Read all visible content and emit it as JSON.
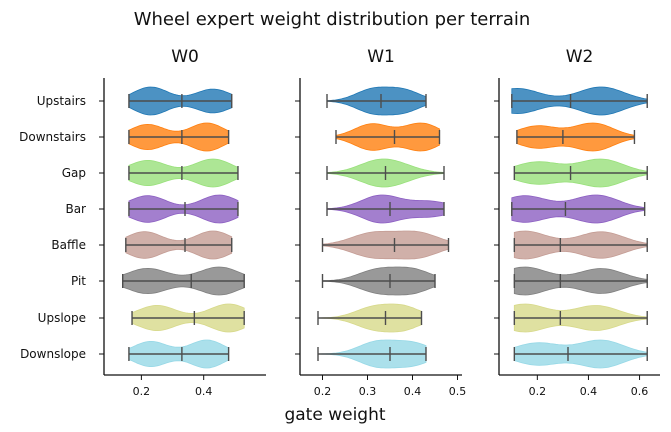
{
  "chart_data": {
    "type": "violin",
    "title": "Wheel expert weight distribution per terrain",
    "xlabel": "gate weight",
    "categories": [
      "Upstairs",
      "Downstairs",
      "Gap",
      "Bar",
      "Baffle",
      "Pit",
      "Upslope",
      "Downslope"
    ],
    "colors": [
      "#1f77b4",
      "#ff7f0e",
      "#98e07a",
      "#8c5fc2",
      "#c49c94",
      "#7f7f7f",
      "#d7d98a",
      "#96d8e6"
    ],
    "panels": [
      {
        "title": "W0",
        "xlim": [
          0.08,
          0.6
        ],
        "xticks": [
          0.2,
          0.4
        ],
        "xticklabels": [
          "0.2",
          "0.4"
        ],
        "violins": [
          {
            "min": 0.16,
            "median": 0.33,
            "max": 0.49,
            "peaks": [
              [
                0.23,
                1.0
              ],
              [
                0.43,
                0.85
              ]
            ]
          },
          {
            "min": 0.16,
            "median": 0.33,
            "max": 0.48,
            "peaks": [
              [
                0.22,
                0.9
              ],
              [
                0.41,
                1.0
              ]
            ]
          },
          {
            "min": 0.16,
            "median": 0.33,
            "max": 0.51,
            "peaks": [
              [
                0.22,
                0.9
              ],
              [
                0.43,
                1.0
              ]
            ]
          },
          {
            "min": 0.16,
            "median": 0.34,
            "max": 0.51,
            "peaks": [
              [
                0.22,
                0.95
              ],
              [
                0.45,
                1.0
              ]
            ]
          },
          {
            "min": 0.15,
            "median": 0.34,
            "max": 0.49,
            "peaks": [
              [
                0.21,
                0.95
              ],
              [
                0.43,
                1.0
              ]
            ]
          },
          {
            "min": 0.14,
            "median": 0.36,
            "max": 0.53,
            "peaks": [
              [
                0.22,
                0.9
              ],
              [
                0.45,
                1.0
              ]
            ]
          },
          {
            "min": 0.17,
            "median": 0.37,
            "max": 0.53,
            "peaks": [
              [
                0.25,
                0.9
              ],
              [
                0.48,
                1.0
              ]
            ]
          },
          {
            "min": 0.16,
            "median": 0.33,
            "max": 0.48,
            "peaks": [
              [
                0.23,
                0.9
              ],
              [
                0.41,
                1.0
              ]
            ]
          }
        ]
      },
      {
        "title": "W1",
        "xlim": [
          0.15,
          0.51
        ],
        "xticks": [
          0.2,
          0.3,
          0.4,
          0.5
        ],
        "xticklabels": [
          "0.2",
          "0.3",
          "0.4",
          "0.5"
        ],
        "violins": [
          {
            "min": 0.21,
            "median": 0.33,
            "max": 0.43,
            "peaks": [
              [
                0.31,
                1.0
              ],
              [
                0.38,
                0.95
              ]
            ]
          },
          {
            "min": 0.23,
            "median": 0.36,
            "max": 0.46,
            "peaks": [
              [
                0.31,
                0.95
              ],
              [
                0.42,
                1.0
              ]
            ]
          },
          {
            "min": 0.21,
            "median": 0.34,
            "max": 0.47,
            "peaks": [
              [
                0.32,
                1.0
              ],
              [
                0.37,
                0.6
              ]
            ]
          },
          {
            "min": 0.21,
            "median": 0.35,
            "max": 0.47,
            "peaks": [
              [
                0.33,
                1.0
              ],
              [
                0.44,
                0.55
              ]
            ]
          },
          {
            "min": 0.2,
            "median": 0.36,
            "max": 0.48,
            "peaks": [
              [
                0.31,
                0.95
              ],
              [
                0.41,
                1.0
              ]
            ]
          },
          {
            "min": 0.2,
            "median": 0.35,
            "max": 0.45,
            "peaks": [
              [
                0.32,
                0.95
              ],
              [
                0.4,
                1.0
              ]
            ]
          },
          {
            "min": 0.19,
            "median": 0.34,
            "max": 0.42,
            "peaks": [
              [
                0.31,
                0.9
              ],
              [
                0.38,
                1.0
              ]
            ]
          },
          {
            "min": 0.19,
            "median": 0.35,
            "max": 0.43,
            "peaks": [
              [
                0.32,
                1.0
              ],
              [
                0.4,
                0.9
              ]
            ]
          }
        ]
      },
      {
        "title": "W2",
        "xlim": [
          0.05,
          0.68
        ],
        "xticks": [
          0.2,
          0.4,
          0.6
        ],
        "xticklabels": [
          "0.2",
          "0.4",
          "0.6"
        ],
        "violins": [
          {
            "min": 0.1,
            "median": 0.33,
            "max": 0.63,
            "peaks": [
              [
                0.12,
                0.9
              ],
              [
                0.45,
                1.0
              ]
            ]
          },
          {
            "min": 0.12,
            "median": 0.3,
            "max": 0.58,
            "peaks": [
              [
                0.2,
                0.8
              ],
              [
                0.42,
                1.0
              ]
            ]
          },
          {
            "min": 0.11,
            "median": 0.33,
            "max": 0.63,
            "peaks": [
              [
                0.2,
                0.8
              ],
              [
                0.45,
                1.0
              ]
            ]
          },
          {
            "min": 0.1,
            "median": 0.31,
            "max": 0.62,
            "peaks": [
              [
                0.15,
                0.95
              ],
              [
                0.43,
                1.0
              ]
            ]
          },
          {
            "min": 0.11,
            "median": 0.29,
            "max": 0.63,
            "peaks": [
              [
                0.15,
                0.9
              ],
              [
                0.45,
                0.85
              ]
            ]
          },
          {
            "min": 0.11,
            "median": 0.29,
            "max": 0.63,
            "peaks": [
              [
                0.15,
                0.9
              ],
              [
                0.45,
                0.8
              ]
            ]
          },
          {
            "min": 0.11,
            "median": 0.29,
            "max": 0.63,
            "peaks": [
              [
                0.15,
                0.95
              ],
              [
                0.43,
                0.85
              ]
            ]
          },
          {
            "min": 0.11,
            "median": 0.32,
            "max": 0.63,
            "peaks": [
              [
                0.2,
                0.8
              ],
              [
                0.45,
                1.0
              ]
            ]
          }
        ]
      }
    ]
  }
}
